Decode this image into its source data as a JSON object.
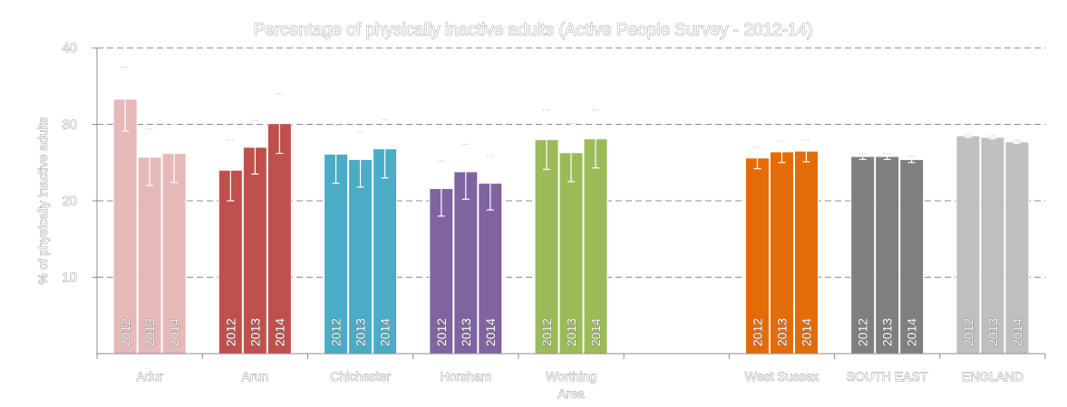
{
  "chart_data": {
    "type": "bar",
    "title": "Percentage of physically inactive adults (Active People Survey - 2012-14)",
    "ylabel": "% of physically inactive adults",
    "xlabel": "",
    "ylim": [
      0,
      40
    ],
    "yticks": [
      10,
      20,
      30,
      40
    ],
    "grid": true,
    "legend": "none",
    "series_labels": [
      "2012",
      "2013",
      "2014"
    ],
    "groups": [
      {
        "name": "Adur",
        "color": "#e6b9b8",
        "values": [
          33.3,
          25.7,
          26.2
        ],
        "ci_low": [
          29.1,
          22.0,
          22.4
        ],
        "ci_high": [
          37.5,
          29.4,
          30.0
        ]
      },
      {
        "name": "Arun",
        "color": "#c0504d",
        "values": [
          24.0,
          27.0,
          30.1
        ],
        "ci_low": [
          20.0,
          23.5,
          26.2
        ],
        "ci_high": [
          28.0,
          30.5,
          34.0
        ]
      },
      {
        "name": "Chichester",
        "color": "#4bacc6",
        "values": [
          26.1,
          25.4,
          26.8
        ],
        "ci_low": [
          22.3,
          21.8,
          23.0
        ],
        "ci_high": [
          29.9,
          29.0,
          30.6
        ]
      },
      {
        "name": "Horsham",
        "color": "#8064a2",
        "values": [
          21.6,
          23.8,
          22.3
        ],
        "ci_low": [
          18.0,
          20.2,
          18.8
        ],
        "ci_high": [
          25.2,
          27.4,
          25.8
        ]
      },
      {
        "name": "Worthing Area",
        "color": "#9bbb59",
        "values": [
          28.0,
          26.3,
          28.1
        ],
        "ci_low": [
          24.1,
          22.5,
          24.3
        ],
        "ci_high": [
          31.9,
          30.1,
          31.9
        ]
      },
      {
        "name": "",
        "color": "#ffffff",
        "values": [],
        "ci_low": [],
        "ci_high": []
      },
      {
        "name": "West Sussex",
        "color": "#e36c09",
        "values": [
          25.6,
          26.4,
          26.5
        ],
        "ci_low": [
          24.2,
          25.0,
          25.1
        ],
        "ci_high": [
          27.0,
          27.8,
          27.9
        ]
      },
      {
        "name": "SOUTH EAST",
        "color": "#7f7f7f",
        "values": [
          25.8,
          25.8,
          25.4
        ],
        "ci_low": [
          25.4,
          25.4,
          25.0
        ],
        "ci_high": [
          26.2,
          26.2,
          25.8
        ]
      },
      {
        "name": "ENGLAND",
        "color": "#bfbfbf",
        "values": [
          28.5,
          28.3,
          27.7
        ],
        "ci_low": [
          28.3,
          28.1,
          27.5
        ],
        "ci_high": [
          28.7,
          28.5,
          27.9
        ]
      }
    ]
  }
}
